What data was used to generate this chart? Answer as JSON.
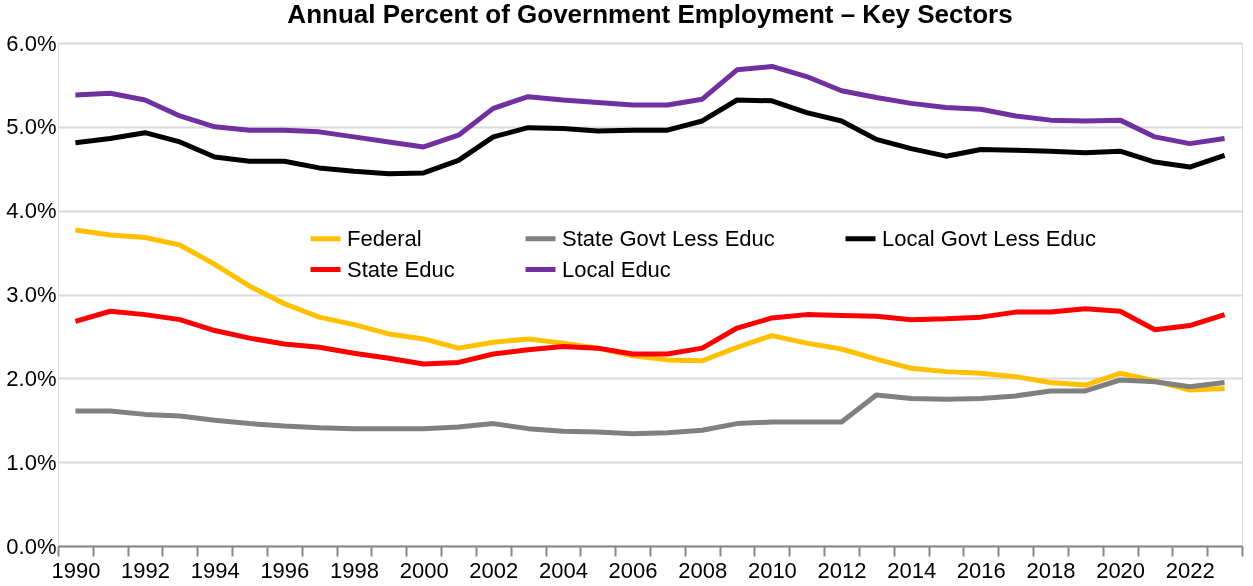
{
  "chart_data": {
    "type": "line",
    "title": "Annual Percent of Government Employment – Key Sectors",
    "categories": [
      "1990",
      null,
      "1992",
      null,
      "1994",
      null,
      "1996",
      null,
      "1998",
      null,
      "2000",
      null,
      "2002",
      null,
      "2004",
      null,
      "2006",
      null,
      "2008",
      null,
      "2010",
      null,
      "2012",
      null,
      "2014",
      null,
      "2016",
      null,
      "2018",
      null,
      "2020",
      null,
      "2022",
      null
    ],
    "series": [
      {
        "name": "Federal",
        "color": "#ffc000",
        "values": [
          3.77,
          3.71,
          3.68,
          3.59,
          3.36,
          3.1,
          2.89,
          2.73,
          2.64,
          2.53,
          2.47,
          2.36,
          2.43,
          2.47,
          2.42,
          2.36,
          2.27,
          2.22,
          2.21,
          2.37,
          2.51,
          2.42,
          2.35,
          2.23,
          2.12,
          2.08,
          2.06,
          2.02,
          1.95,
          1.92,
          2.06,
          1.97,
          1.86,
          1.88
        ]
      },
      {
        "name": "State Educ",
        "color": "#ff0000",
        "values": [
          2.68,
          2.8,
          2.76,
          2.7,
          2.57,
          2.48,
          2.41,
          2.37,
          2.3,
          2.24,
          2.17,
          2.19,
          2.29,
          2.34,
          2.38,
          2.36,
          2.29,
          2.29,
          2.36,
          2.6,
          2.72,
          2.76,
          2.75,
          2.74,
          2.7,
          2.71,
          2.73,
          2.79,
          2.79,
          2.83,
          2.8,
          2.58,
          2.63,
          2.76
        ]
      },
      {
        "name": "State Govt Less Educ",
        "color": "#808080",
        "values": [
          1.61,
          1.61,
          1.57,
          1.55,
          1.5,
          1.46,
          1.43,
          1.41,
          1.4,
          1.4,
          1.4,
          1.42,
          1.46,
          1.4,
          1.37,
          1.36,
          1.34,
          1.35,
          1.38,
          1.46,
          1.48,
          1.48,
          1.48,
          1.8,
          1.76,
          1.75,
          1.76,
          1.79,
          1.85,
          1.85,
          1.98,
          1.96,
          1.9,
          1.95
        ]
      },
      {
        "name": "Local Educ",
        "color": "#7030a0",
        "values": [
          5.38,
          5.4,
          5.32,
          5.13,
          5.0,
          4.96,
          4.96,
          4.94,
          4.88,
          4.82,
          4.76,
          4.9,
          5.22,
          5.36,
          5.32,
          5.29,
          5.26,
          5.26,
          5.33,
          5.68,
          5.72,
          5.6,
          5.43,
          5.35,
          5.28,
          5.23,
          5.21,
          5.13,
          5.08,
          5.07,
          5.08,
          4.88,
          4.8,
          4.86
        ]
      },
      {
        "name": "Local Govt Less Educ",
        "color": "#000000",
        "values": [
          4.81,
          4.86,
          4.93,
          4.82,
          4.64,
          4.59,
          4.59,
          4.51,
          4.47,
          4.44,
          4.45,
          4.6,
          4.88,
          4.99,
          4.98,
          4.95,
          4.96,
          4.96,
          5.07,
          5.32,
          5.31,
          5.17,
          5.07,
          4.85,
          4.74,
          4.65,
          4.73,
          4.72,
          4.71,
          4.69,
          4.71,
          4.58,
          4.52,
          4.66
        ]
      }
    ],
    "ylim": [
      0,
      6
    ],
    "yticks": [
      {
        "value": 0,
        "label": "0.0%"
      },
      {
        "value": 1,
        "label": "1.0%"
      },
      {
        "value": 2,
        "label": "2.0%"
      },
      {
        "value": 3,
        "label": "3.0%"
      },
      {
        "value": 4,
        "label": "4.0%"
      },
      {
        "value": 5,
        "label": "5.0%"
      },
      {
        "value": 6,
        "label": "6.0%"
      }
    ],
    "grid": "y",
    "legend": "top right",
    "marker": "none",
    "line_style": "solid"
  }
}
